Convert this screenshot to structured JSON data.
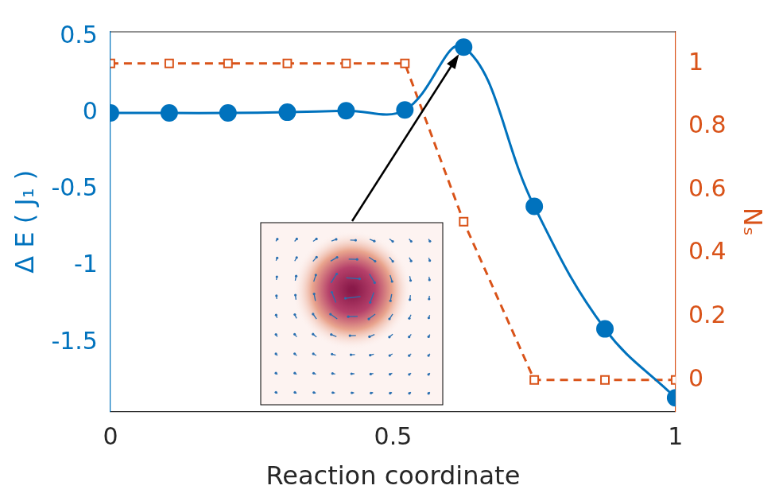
{
  "chart_data": {
    "type": "line",
    "x_label": "Reaction coordinate",
    "y_label": "Δ E ( J₁ )",
    "y2_label": "Nₛ",
    "x": [
      0,
      0.104,
      0.208,
      0.313,
      0.417,
      0.521,
      0.625,
      0.75,
      0.875,
      1
    ],
    "series": [
      {
        "name": "ΔE",
        "color": "#0072bd",
        "marker": "circle",
        "line_style": "solid",
        "values": [
          0,
          0,
          0,
          0.005,
          0.015,
          0.02,
          0.43,
          -0.61,
          -1.41,
          -1.86
        ]
      },
      {
        "name": "Nₛ",
        "color": "#d95319",
        "marker": "square",
        "line_style": "dashed",
        "axis": "y2",
        "values": [
          1,
          1,
          1,
          1,
          1,
          1,
          0.5,
          0,
          0,
          0
        ]
      }
    ],
    "xlim": [
      0,
      1
    ],
    "xticks": [
      0,
      0.5,
      1
    ],
    "ylim": [
      -1.95,
      0.53
    ],
    "yticks": [
      -1.5,
      -1,
      -0.5,
      0,
      0.5
    ],
    "y2lim": [
      -0.1,
      1.1
    ],
    "y2ticks": [
      0,
      0.2,
      0.4,
      0.6,
      0.8,
      1
    ],
    "grid": false
  }
}
